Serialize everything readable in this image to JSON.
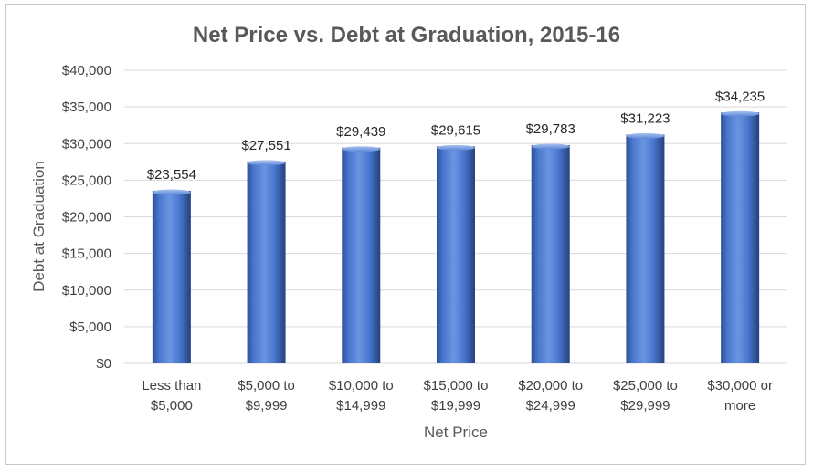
{
  "chart_data": {
    "type": "bar",
    "title": "Net Price vs. Debt at Graduation, 2015-16",
    "xlabel": "Net Price",
    "ylabel": "Debt at Graduation",
    "categories": [
      [
        "Less than",
        "$5,000"
      ],
      [
        "$5,000 to",
        "$9,999"
      ],
      [
        "$10,000 to",
        "$14,999"
      ],
      [
        "$15,000 to",
        "$19,999"
      ],
      [
        "$20,000 to",
        "$24,999"
      ],
      [
        "$25,000 to",
        "$29,999"
      ],
      [
        "$30,000 or",
        "more"
      ]
    ],
    "values": [
      23554,
      27551,
      29439,
      29615,
      29783,
      31223,
      34235
    ],
    "data_labels": [
      "$23,554",
      "$27,551",
      "$29,439",
      "$29,615",
      "$29,783",
      "$31,223",
      "$34,235"
    ],
    "y_ticks": [
      0,
      5000,
      10000,
      15000,
      20000,
      25000,
      30000,
      35000,
      40000
    ],
    "y_tick_labels": [
      "$0",
      "$5,000",
      "$10,000",
      "$15,000",
      "$20,000",
      "$25,000",
      "$30,000",
      "$35,000",
      "$40,000"
    ],
    "ylim": [
      0,
      40000
    ],
    "grid": true,
    "legend": "none",
    "bar_color": "#4472c4"
  }
}
